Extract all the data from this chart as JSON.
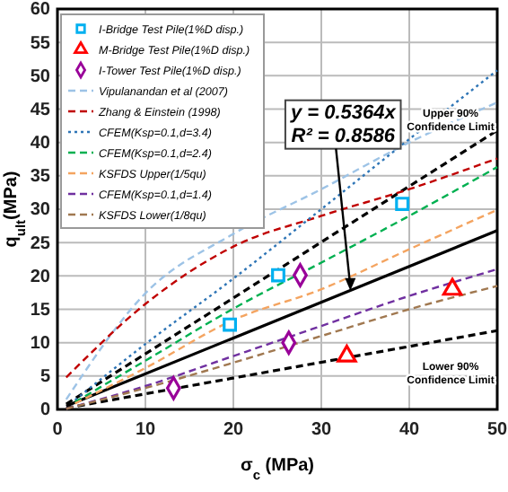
{
  "chart_data": {
    "type": "scatter",
    "xlabel": "σ$_{c}$ (MPa)",
    "ylabel": "q$_{ult}$(MPa)",
    "xlim": [
      0,
      50
    ],
    "xticks": [
      0,
      10,
      20,
      30,
      40,
      50
    ],
    "ylim": [
      0,
      60
    ],
    "yticks": [
      0,
      5,
      10,
      15,
      20,
      25,
      30,
      35,
      40,
      45,
      50,
      55,
      60
    ],
    "grid": true,
    "legend": "top left",
    "series": [
      {
        "name": "I-Bridge Test Pile(1%D disp.)",
        "marker": "square",
        "color": "#00b0f0",
        "x": [
          19.6,
          25.1,
          39.2
        ],
        "values": [
          12.7,
          20.1,
          30.8
        ]
      },
      {
        "name": "M-Bridge Test Pile(1%D disp.)",
        "marker": "triangle",
        "color": "#ff0000",
        "x": [
          32.9,
          44.9
        ],
        "values": [
          8.0,
          18.0
        ]
      },
      {
        "name": "I-Tower Test Pile(1%D disp.)",
        "marker": "diamond",
        "color": "#990099",
        "x": [
          13.2,
          26.3,
          27.6
        ],
        "values": [
          3.2,
          10.0,
          20.1
        ]
      },
      {
        "name": "Vipulanandan et al (2007)",
        "type": "line",
        "line_style": "dashed",
        "color": "#9dc3e6",
        "x": [
          1,
          10,
          20,
          30,
          40,
          50
        ],
        "values": [
          1.5,
          17.4,
          26.3,
          33,
          40,
          46
        ]
      },
      {
        "name": "Zhang & Einstein (1998)",
        "type": "line",
        "line_style": "dashed",
        "color": "#c00000",
        "x": [
          1,
          10,
          20,
          30,
          40,
          50
        ],
        "values": [
          4.8,
          15.8,
          24.4,
          29,
          33,
          37.6
        ]
      },
      {
        "name": "CFEM(Ksp=0.1,d=3.4)",
        "type": "line",
        "line_style": "dotted",
        "color": "#2e75b6",
        "x": [
          2,
          10,
          20,
          30,
          40,
          50
        ],
        "values": [
          1.4,
          9.8,
          19.6,
          30,
          40.5,
          50.8
        ]
      },
      {
        "name": "CFEM(Ksp=0.1,d=2.4)",
        "type": "line",
        "line_style": "dashed",
        "color": "#00b050",
        "x": [
          2,
          10,
          20,
          30,
          40,
          50
        ],
        "values": [
          1.1,
          7.3,
          15.1,
          22,
          29,
          36.3
        ]
      },
      {
        "name": "KSFDS Upper(1/5qu)",
        "type": "line",
        "line_style": "dashed",
        "color": "#f4a460",
        "x": [
          2,
          10,
          20,
          30,
          40,
          50
        ],
        "values": [
          0.9,
          6.2,
          13.4,
          18,
          24,
          29.9
        ]
      },
      {
        "name": "CFEM(Ksp=0.1,d=1.4)",
        "type": "line",
        "line_style": "dashed",
        "color": "#7030a0",
        "x": [
          1,
          10,
          20,
          30,
          40,
          50
        ],
        "values": [
          0.1,
          3.5,
          8,
          12.5,
          17,
          21
        ]
      },
      {
        "name": "KSFDS Lower(1/8qu)",
        "type": "line",
        "line_style": "dashed",
        "color": "#a07850",
        "x": [
          1,
          10,
          20,
          30,
          40,
          50
        ],
        "values": [
          0.1,
          3.2,
          7,
          11,
          15,
          18.5
        ]
      },
      {
        "type": "line",
        "line_style": "solid",
        "color": "#000000",
        "x": [
          1,
          50
        ],
        "values": [
          0.5,
          26.8
        ]
      },
      {
        "type": "line",
        "line_style": "dashed",
        "color": "#000000",
        "x": [
          1,
          50
        ],
        "values": [
          0.8,
          41.8
        ]
      },
      {
        "type": "line",
        "line_style": "dashed",
        "color": "#000000",
        "x": [
          1,
          50
        ],
        "values": [
          0.2,
          11.8
        ]
      }
    ],
    "annotations": [
      {
        "text": "y = 0.5364x\nR² = 0.8586",
        "x": 33.3,
        "y": 17.8
      },
      "Upper 90%\nConfidence Limit",
      "Lower 90%\nConfidence Limit"
    ]
  }
}
